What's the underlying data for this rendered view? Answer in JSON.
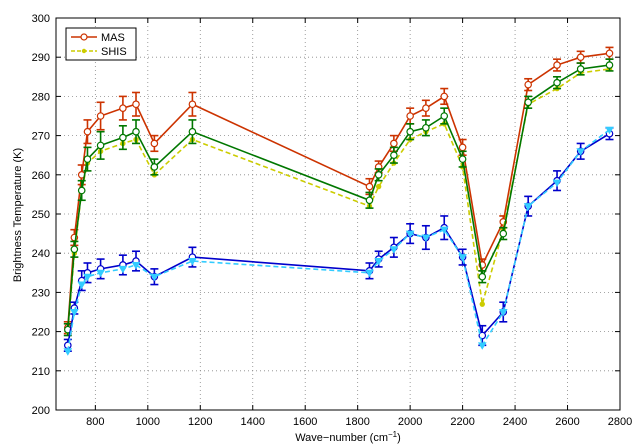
{
  "chart_data": {
    "type": "line",
    "xlabel": "Wave−number (cm",
    "xlabel_unit_sup": "−1",
    "xlabel_close": ")",
    "ylabel": "Brightness Temperature (K)",
    "xlim": [
      650,
      2800
    ],
    "ylim": [
      200,
      300
    ],
    "xticks": [
      "800",
      "1000",
      "1200",
      "1400",
      "1600",
      "1800",
      "2000",
      "2200",
      "2400",
      "2600",
      "2800"
    ],
    "yticks": [
      "200",
      "210",
      "220",
      "230",
      "240",
      "250",
      "260",
      "270",
      "280",
      "290",
      "300"
    ],
    "grid": true,
    "legend_position": "top-left",
    "legend": [
      "MAS",
      "SHIS"
    ],
    "x": [
      695,
      720,
      748,
      770,
      820,
      905,
      955,
      1025,
      1170,
      1845,
      1880,
      1938,
      2000,
      2060,
      2130,
      2200,
      2275,
      2355,
      2450,
      2560,
      2650,
      2760
    ],
    "series": [
      {
        "name": "MAS",
        "color": "#cc3300",
        "marker": "circle",
        "values": [
          221,
          244,
          260,
          271,
          275,
          277,
          278,
          268,
          278,
          257,
          262,
          268,
          275,
          277,
          280,
          267,
          237,
          248,
          283,
          288,
          290,
          291
        ],
        "errors": [
          1.5,
          2,
          2.5,
          3,
          3.5,
          3,
          3,
          2,
          3,
          2,
          1.5,
          2,
          2,
          2,
          2,
          2,
          1.5,
          1.5,
          1.5,
          1.5,
          1.5,
          1.5
        ]
      },
      {
        "name": "SHIS",
        "color": "#cccc00",
        "marker": "dot",
        "dashed": true,
        "values": [
          220,
          240,
          256,
          263,
          266,
          268,
          269,
          260,
          269,
          252,
          257,
          263,
          269,
          271,
          273,
          262,
          227,
          246,
          278,
          282,
          286,
          287
        ],
        "errors": []
      },
      {
        "name": "",
        "color": "#007700",
        "marker": "circle",
        "values": [
          220.5,
          241,
          256,
          264,
          267.5,
          269.5,
          271,
          262,
          271,
          253.5,
          260,
          265,
          271,
          272,
          275,
          264,
          234,
          245,
          278.5,
          283.5,
          287,
          288
        ],
        "errors": [
          1.5,
          2,
          2.5,
          3,
          3.5,
          3,
          3,
          2,
          3,
          2,
          1.5,
          2,
          2,
          2,
          2,
          2,
          1.5,
          1.5,
          1.5,
          1.5,
          1.5,
          1.5
        ]
      },
      {
        "name": "",
        "color": "#0000cc",
        "marker": "circle",
        "values": [
          216.5,
          226,
          233,
          235,
          236,
          237,
          238,
          234,
          239,
          235.5,
          238.5,
          241.5,
          245,
          244,
          246.5,
          239,
          219,
          225,
          252,
          258.5,
          266,
          270.5
        ],
        "errors": [
          1.5,
          1.5,
          2.5,
          2.5,
          2.5,
          2.5,
          2.5,
          2,
          2.5,
          2,
          2,
          2.5,
          2.5,
          3,
          3,
          2,
          2.5,
          2.5,
          2.5,
          2.5,
          2,
          1.5
        ]
      },
      {
        "name": "",
        "color": "#33ccff",
        "marker": "triangle",
        "dashed": true,
        "values": [
          215,
          225,
          232,
          234,
          235,
          236,
          237,
          234,
          238,
          235,
          238,
          241,
          245,
          244,
          246,
          239,
          216.5,
          225,
          252,
          258,
          266,
          271.5
        ],
        "errors": []
      }
    ]
  }
}
